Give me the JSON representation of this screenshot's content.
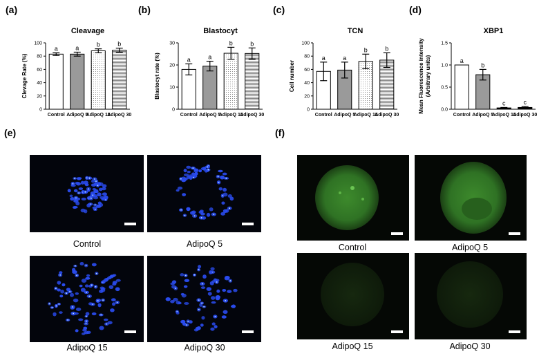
{
  "panels": {
    "a": "(a)",
    "b": "(b)",
    "c": "(c)",
    "d": "(d)",
    "e": "(e)",
    "f": "(f)"
  },
  "chart_data": [
    {
      "type": "bar",
      "title": "Cleavage",
      "ylabel": "Clevage Rate (%)",
      "xlabel": "",
      "ylim": [
        0,
        100
      ],
      "yticks": [
        0,
        20,
        40,
        60,
        80,
        100
      ],
      "categories": [
        "Control",
        "AdipoQ 5",
        "AdipoQ 15",
        "AdipoQ 30"
      ],
      "values": [
        83,
        83,
        88,
        89
      ],
      "errors": [
        2,
        3,
        3,
        3
      ],
      "labels": [
        "a",
        "a",
        "b",
        "b"
      ],
      "patterns": [
        "white",
        "gray",
        "dots",
        "hlines"
      ]
    },
    {
      "type": "bar",
      "title": "Blastocyt",
      "ylabel": "Blastocyt rate (%)",
      "xlabel": "",
      "ylim": [
        0,
        30
      ],
      "yticks": [
        0,
        10,
        20,
        30
      ],
      "categories": [
        "Control",
        "AdipoQ 5",
        "AdipoQ 15",
        "AdipoQ 30"
      ],
      "values": [
        18,
        19.5,
        25.3,
        25.2
      ],
      "errors": [
        2.5,
        2.2,
        2.7,
        2.5
      ],
      "labels": [
        "a",
        "a",
        "b",
        "b"
      ],
      "patterns": [
        "white",
        "gray",
        "dots",
        "hlines"
      ]
    },
    {
      "type": "bar",
      "title": "TCN",
      "ylabel": "Cell number",
      "xlabel": "",
      "ylim": [
        0,
        100
      ],
      "yticks": [
        0,
        20,
        40,
        60,
        80,
        100
      ],
      "categories": [
        "Control",
        "AdipoQ 5",
        "AdipoQ 15",
        "AdipoQ 30"
      ],
      "values": [
        57,
        59,
        72,
        74
      ],
      "errors": [
        14,
        12,
        11,
        11
      ],
      "labels": [
        "a",
        "a",
        "b",
        "b"
      ],
      "patterns": [
        "white",
        "gray",
        "dots",
        "hlines"
      ]
    },
    {
      "type": "bar",
      "title": "XBP1",
      "ylabel": "Mean Fluorescence intensity (Arbitrary units)",
      "xlabel": "",
      "ylim": [
        0,
        1.5
      ],
      "yticks": [
        "0.0",
        "0.5",
        "1.0",
        "1.5"
      ],
      "categories": [
        "Control",
        "AdipoQ 5",
        "AdipoQ 15",
        "AdipoQ 30"
      ],
      "values": [
        1.0,
        0.78,
        0.03,
        0.04
      ],
      "errors": [
        0,
        0.12,
        0.01,
        0.02
      ],
      "labels": [
        "a",
        "b",
        "c",
        "c"
      ],
      "patterns": [
        "white",
        "gray",
        "black",
        "black"
      ]
    }
  ],
  "images_e": {
    "captions": [
      "Control",
      "AdipoQ 5",
      "AdipoQ 15",
      "AdipoQ 30"
    ],
    "stain_color": "#2a4cf0"
  },
  "images_f": {
    "captions": [
      "Control",
      "AdipoQ 5",
      "AdipoQ 15",
      "AdipoQ 30"
    ],
    "stain_color": "#3fa82e"
  }
}
